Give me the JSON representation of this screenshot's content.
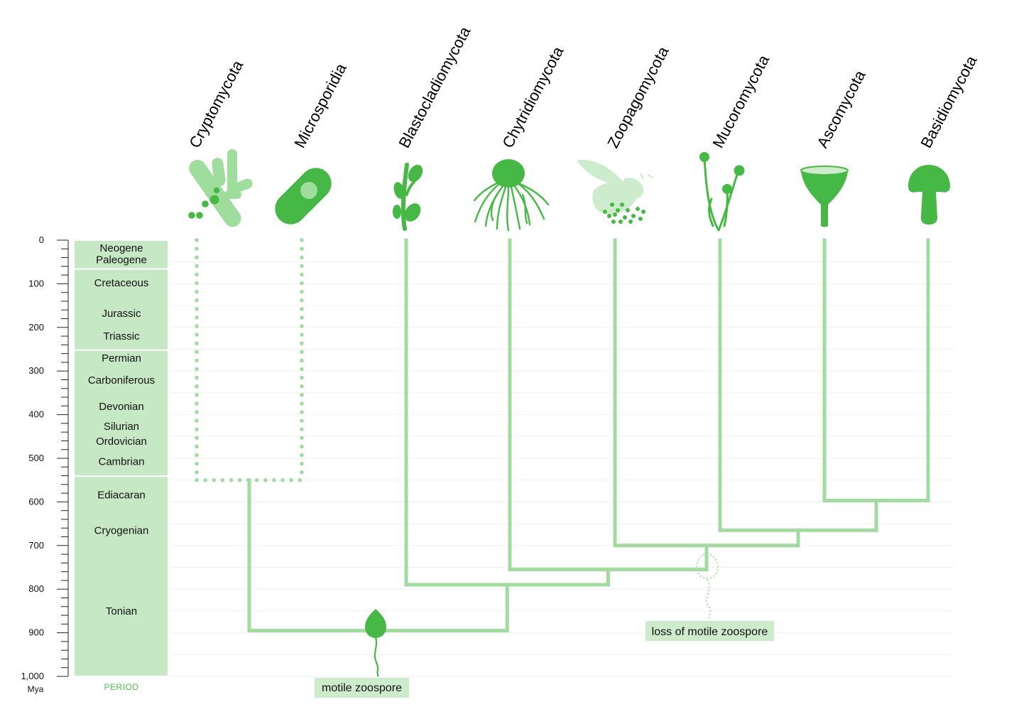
{
  "time_axis": {
    "unit": "Mya",
    "tick_labels": [
      "0",
      "100",
      "200",
      "300",
      "400",
      "500",
      "600",
      "700",
      "800",
      "900",
      "1,000"
    ],
    "min": 0,
    "max": 1000
  },
  "period_column": {
    "caption": "PERIOD",
    "groups": [
      {
        "start": 0,
        "end": 66,
        "labels": [
          {
            "text": "Neogene",
            "at": 18
          },
          {
            "text": "Paleogene",
            "at": 45
          }
        ]
      },
      {
        "start": 66,
        "end": 252,
        "labels": [
          {
            "text": "Cretaceous",
            "at": 98
          },
          {
            "text": "Jurassic",
            "at": 168
          },
          {
            "text": "Triassic",
            "at": 220
          }
        ]
      },
      {
        "start": 252,
        "end": 541,
        "labels": [
          {
            "text": "Permian",
            "at": 270
          },
          {
            "text": "Carboniferous",
            "at": 321
          },
          {
            "text": "Devonian",
            "at": 381
          },
          {
            "text": "Silurian",
            "at": 427
          },
          {
            "text": "Ordovician",
            "at": 461
          },
          {
            "text": "Cambrian",
            "at": 507
          }
        ]
      },
      {
        "start": 541,
        "end": 1000,
        "labels": [
          {
            "text": "Ediacaran",
            "at": 584
          },
          {
            "text": "Cryogenian",
            "at": 665
          },
          {
            "text": "Tonian",
            "at": 850
          }
        ]
      }
    ]
  },
  "taxa": [
    {
      "id": "cryptomycota",
      "name": "Cryptomycota",
      "icon": "cryptomycota-cells-icon"
    },
    {
      "id": "microsporidia",
      "name": "Microsporidia",
      "icon": "microsporidia-spore-icon"
    },
    {
      "id": "blastocladiomycota",
      "name": "Blastocladiomycota",
      "icon": "blastocladiomycota-sporangia-icon"
    },
    {
      "id": "chytridiomycota",
      "name": "Chytridiomycota",
      "icon": "chytrid-rhizoid-icon"
    },
    {
      "id": "zoopagomycota",
      "name": "Zoopagomycota",
      "icon": "fly-with-spores-icon"
    },
    {
      "id": "mucoromycota",
      "name": "Mucoromycota",
      "icon": "pin-mold-icon"
    },
    {
      "id": "ascomycota",
      "name": "Ascomycota",
      "icon": "cup-fungus-icon"
    },
    {
      "id": "basidiomycota",
      "name": "Basidiomycota",
      "icon": "mushroom-icon"
    }
  ],
  "tree": {
    "nodes": [
      {
        "id": "n-crypto-micro",
        "age": 550,
        "children": [
          "cryptomycota",
          "microsporidia"
        ],
        "dotted": true
      },
      {
        "id": "n-asco-basidio",
        "age": 597,
        "children": [
          "ascomycota",
          "basidiomycota"
        ]
      },
      {
        "id": "n-muco-dikarya",
        "age": 665,
        "children": [
          "mucoromycota",
          "n-asco-basidio"
        ]
      },
      {
        "id": "n-zoopago-rest",
        "age": 700,
        "children": [
          "zoopagomycota",
          "n-muco-dikarya"
        ]
      },
      {
        "id": "n-chytrid-rest",
        "age": 755,
        "children": [
          "chytridiomycota",
          "n-zoopago-rest"
        ]
      },
      {
        "id": "n-blasto-rest",
        "age": 790,
        "children": [
          "blastocladiomycota",
          "n-chytrid-rest"
        ]
      },
      {
        "id": "n-root",
        "age": 895,
        "children": [
          "n-crypto-micro",
          "n-blasto-rest"
        ]
      }
    ]
  },
  "annotations": [
    {
      "id": "motile-zoospore",
      "text": "motile zoospore",
      "icon": "zoospore-flagellum-icon"
    },
    {
      "id": "loss-of-motile-zoospore",
      "text": "loss of motile zoospore",
      "icon": "lost-zoospore-outline-icon"
    }
  ],
  "colors": {
    "branch": "#a2dba0",
    "icon_strong": "#46b845",
    "icon_light": "#9fdd9c",
    "icon_pale": "#cdeccb",
    "period_fill": "#c7e8c4",
    "note_fill": "#cdeccb",
    "caption": "#4cbb47",
    "gridline": "#f0f0f0"
  }
}
